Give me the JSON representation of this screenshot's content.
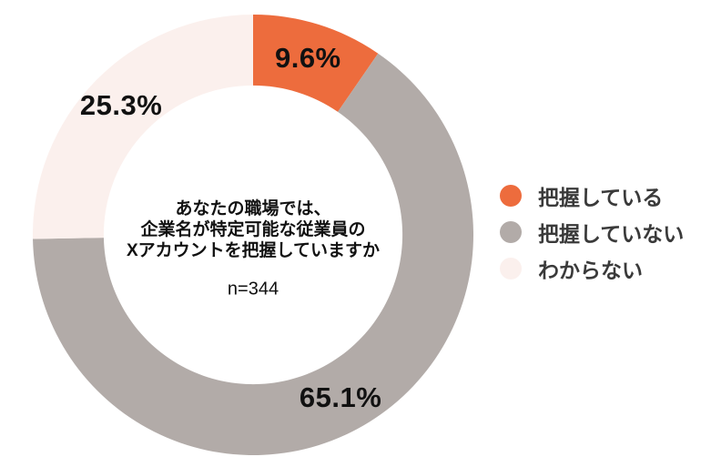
{
  "chart_data": {
    "type": "pie",
    "subtype": "donut",
    "title": "あなたの職場では、企業名が特定可能な従業員のXアカウントを把握していますか",
    "title_lines": [
      "あなたの職場では、",
      "企業名が特定可能な従業員の",
      "Xアカウントを把握していますか"
    ],
    "sample_size_label": "n=344",
    "sample_size": 344,
    "categories": [
      "把握している",
      "把握していない",
      "わからない"
    ],
    "values": [
      9.6,
      65.1,
      25.3
    ],
    "slices": [
      {
        "label": "把握している",
        "value": 9.6,
        "display": "9.6%",
        "color": "#ed6c3d"
      },
      {
        "label": "把握していない",
        "value": 65.1,
        "display": "65.1%",
        "color": "#b2aba8"
      },
      {
        "label": "わからない",
        "value": 25.3,
        "display": "25.3%",
        "color": "#fbf0ed"
      }
    ],
    "start_angle_deg": 0,
    "direction": "clockwise",
    "inner_radius_ratio": 0.678,
    "legend_position": "right",
    "value_label_color": "#111111",
    "legend_text_color": "#3a3a3a",
    "background_color": "#ffffff"
  }
}
